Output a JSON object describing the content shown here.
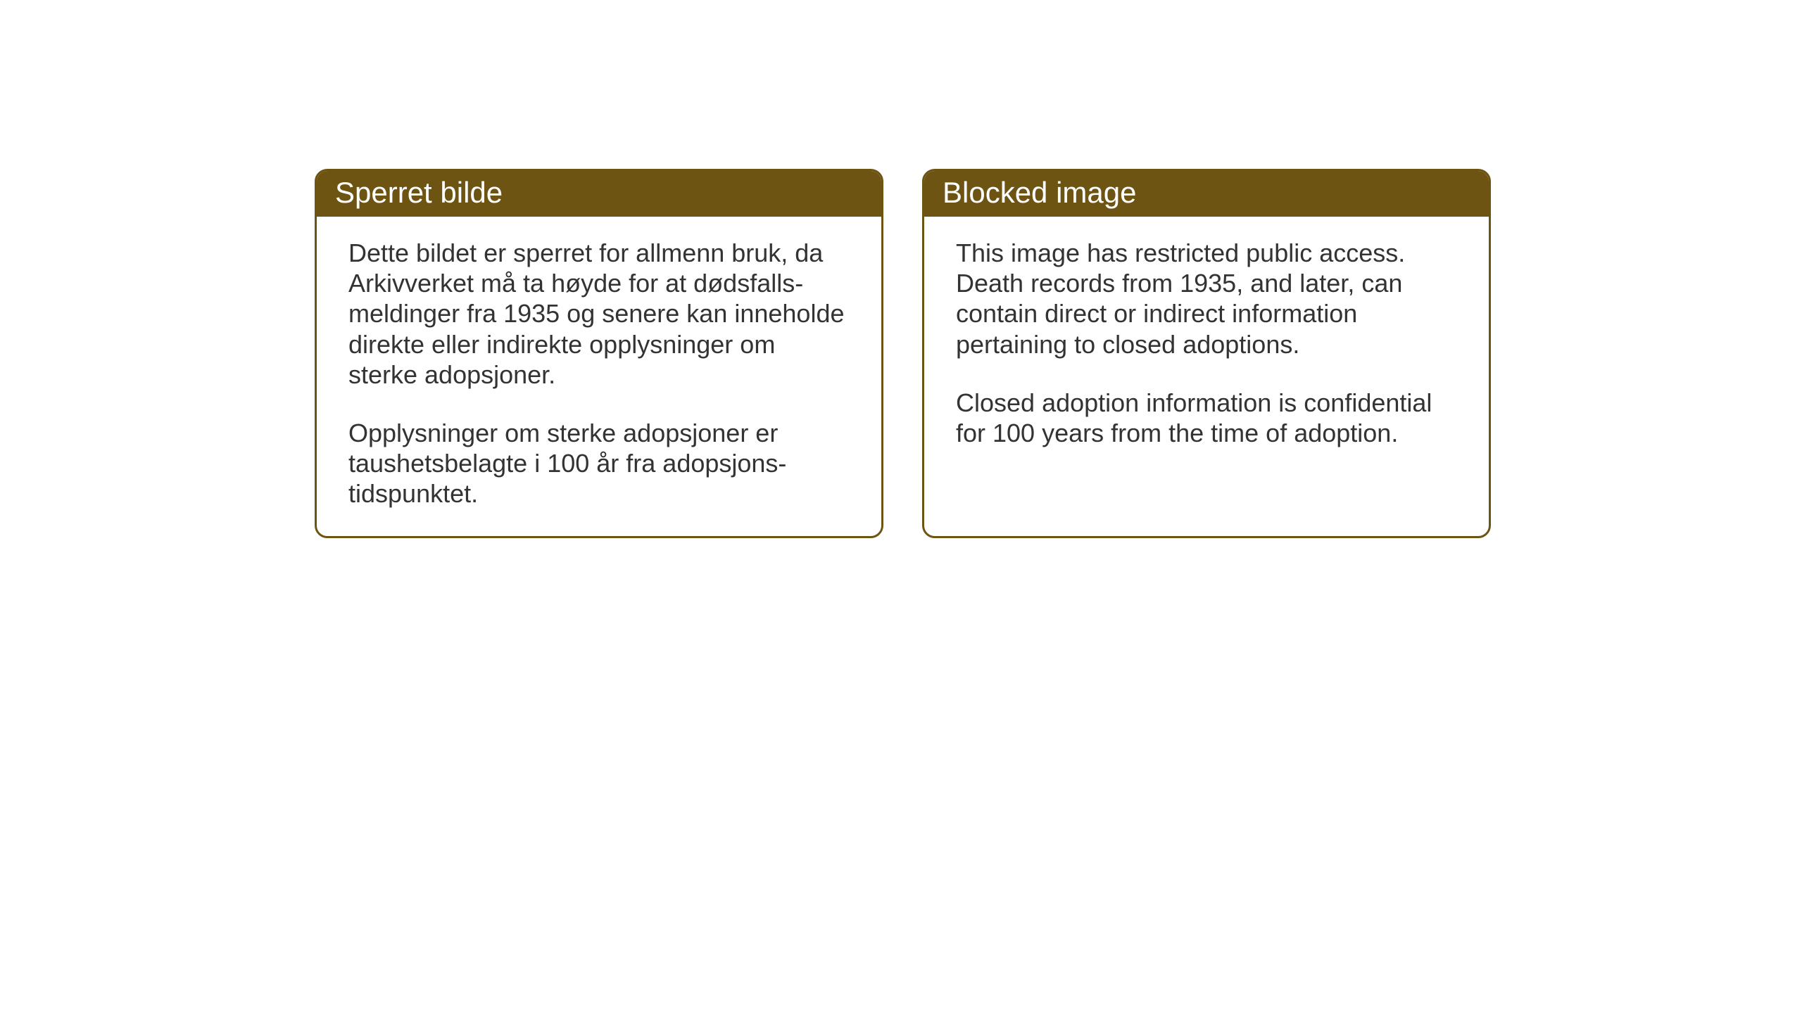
{
  "styling": {
    "card_border_color": "#6e5413",
    "card_header_bg": "#6e5413",
    "card_header_text_color": "#ffffff",
    "card_body_bg": "#ffffff",
    "card_body_text_color": "#333333",
    "card_border_radius": 18,
    "card_border_width": 3,
    "header_fontsize": 42,
    "body_fontsize": 36,
    "body_line_height": 1.2,
    "page_bg": "#ffffff"
  },
  "cards": {
    "norwegian": {
      "title": "Sperret bilde",
      "paragraph1": "Dette bildet er sperret for allmenn bruk, da Arkivverket må ta høyde for at dødsfalls-meldinger fra 1935 og senere kan inneholde direkte eller indirekte opplysninger om sterke adopsjoner.",
      "paragraph2": "Opplysninger om sterke adopsjoner er taushetsbelagte i 100 år fra adopsjons-tidspunktet."
    },
    "english": {
      "title": "Blocked image",
      "paragraph1": "This image has restricted public access. Death records from 1935, and later, can contain direct or indirect information pertaining to closed adoptions.",
      "paragraph2": "Closed adoption information is confidential for 100 years from the time of adoption."
    }
  }
}
